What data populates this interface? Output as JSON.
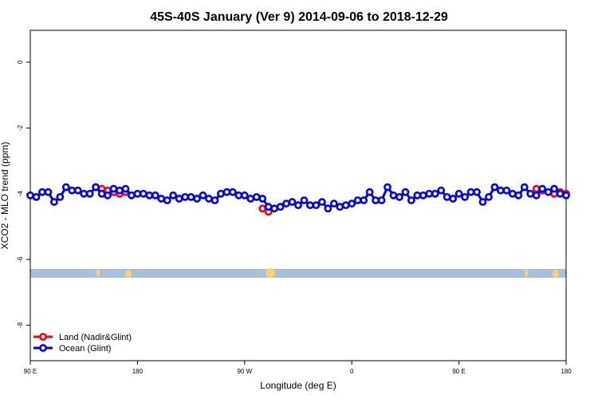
{
  "chart_data": {
    "type": "line",
    "title": "45S-40S January (Ver 9)   2014-09-06 to 2018-12-29",
    "x_label": "Longitude (deg E)",
    "y_label": "XCO2 - MLO trend (ppm)",
    "x": [
      90,
      95,
      100,
      105,
      110,
      115,
      120,
      125,
      130,
      135,
      140,
      145,
      150,
      155,
      160,
      165,
      170,
      175,
      180,
      185,
      190,
      195,
      200,
      205,
      210,
      215,
      220,
      225,
      230,
      235,
      240,
      245,
      250,
      255,
      260,
      265,
      270,
      275,
      280,
      285,
      290,
      295,
      300,
      305,
      310,
      315,
      320,
      325,
      330,
      335,
      340,
      345,
      350,
      355,
      360,
      365,
      370,
      375,
      380,
      385,
      390,
      395,
      400,
      405,
      410,
      415,
      420,
      425,
      430,
      435,
      440,
      445,
      450,
      455,
      460,
      465,
      470,
      475,
      480,
      485,
      490,
      495,
      500,
      505,
      510,
      515,
      520,
      525,
      530,
      535,
      540
    ],
    "series": [
      {
        "name": "Land (Nadir&Glint)",
        "color": "#ff0000",
        "values": [
          null,
          null,
          null,
          null,
          null,
          null,
          null,
          null,
          null,
          null,
          null,
          -3.8,
          -3.85,
          -3.9,
          -3.95,
          -4.0,
          -3.95,
          null,
          null,
          null,
          null,
          null,
          null,
          null,
          null,
          null,
          null,
          null,
          null,
          null,
          null,
          null,
          null,
          null,
          null,
          null,
          null,
          null,
          null,
          -4.45,
          -4.55,
          null,
          null,
          null,
          null,
          null,
          null,
          null,
          null,
          null,
          null,
          null,
          null,
          null,
          null,
          null,
          null,
          null,
          null,
          null,
          null,
          null,
          null,
          null,
          null,
          null,
          null,
          null,
          null,
          null,
          null,
          null,
          null,
          null,
          null,
          null,
          null,
          null,
          null,
          null,
          null,
          null,
          null,
          null,
          null,
          -3.85,
          -3.9,
          null,
          -4.0,
          -3.95,
          -4.0
        ]
      },
      {
        "name": "Ocean (Glint)",
        "color": "#0000ff",
        "values": [
          -4.05,
          -4.1,
          -3.95,
          -3.95,
          -4.25,
          -4.1,
          -3.8,
          -3.9,
          -3.9,
          -4.0,
          -4.0,
          -3.8,
          -4.0,
          -4.05,
          -3.85,
          -3.9,
          -3.85,
          -4.05,
          -4.0,
          -4.0,
          -4.05,
          -4.05,
          -4.15,
          -4.2,
          -4.05,
          -4.15,
          -4.1,
          -4.1,
          -4.15,
          -4.05,
          -4.15,
          -4.2,
          -4.0,
          -3.95,
          -3.95,
          -4.05,
          -4.05,
          -4.15,
          -4.1,
          -4.15,
          -4.4,
          -4.45,
          -4.4,
          -4.3,
          -4.25,
          -4.35,
          -4.2,
          -4.35,
          -4.35,
          -4.25,
          -4.45,
          -4.3,
          -4.4,
          -4.35,
          -4.3,
          -4.2,
          -4.2,
          -3.95,
          -4.2,
          -4.2,
          -3.8,
          -4.05,
          -4.1,
          -3.95,
          -4.2,
          -4.05,
          -4.05,
          -4.0,
          -4.0,
          -3.9,
          -4.1,
          -4.15,
          -4.0,
          -4.1,
          -3.95,
          -3.95,
          -4.25,
          -4.1,
          -3.8,
          -3.9,
          -3.9,
          -4.0,
          -4.05,
          -3.8,
          -4.0,
          -4.05,
          -3.85,
          -3.95,
          -3.85,
          -4.0,
          -4.05
        ]
      }
    ],
    "xlim": [
      90,
      540
    ],
    "xticks": [
      {
        "value": 90,
        "label": "90 E"
      },
      180,
      {
        "value": 270,
        "label": "90 W"
      },
      {
        "value": 360,
        "label": "0"
      },
      {
        "value": 450,
        "label": "90 E"
      },
      {
        "value": 540,
        "label": "180"
      }
    ],
    "ylim": [
      -9.08,
      0.97
    ],
    "yticks": [
      0,
      -2,
      -4,
      -6,
      -8
    ],
    "legend": "bottom left",
    "grid": false
  }
}
